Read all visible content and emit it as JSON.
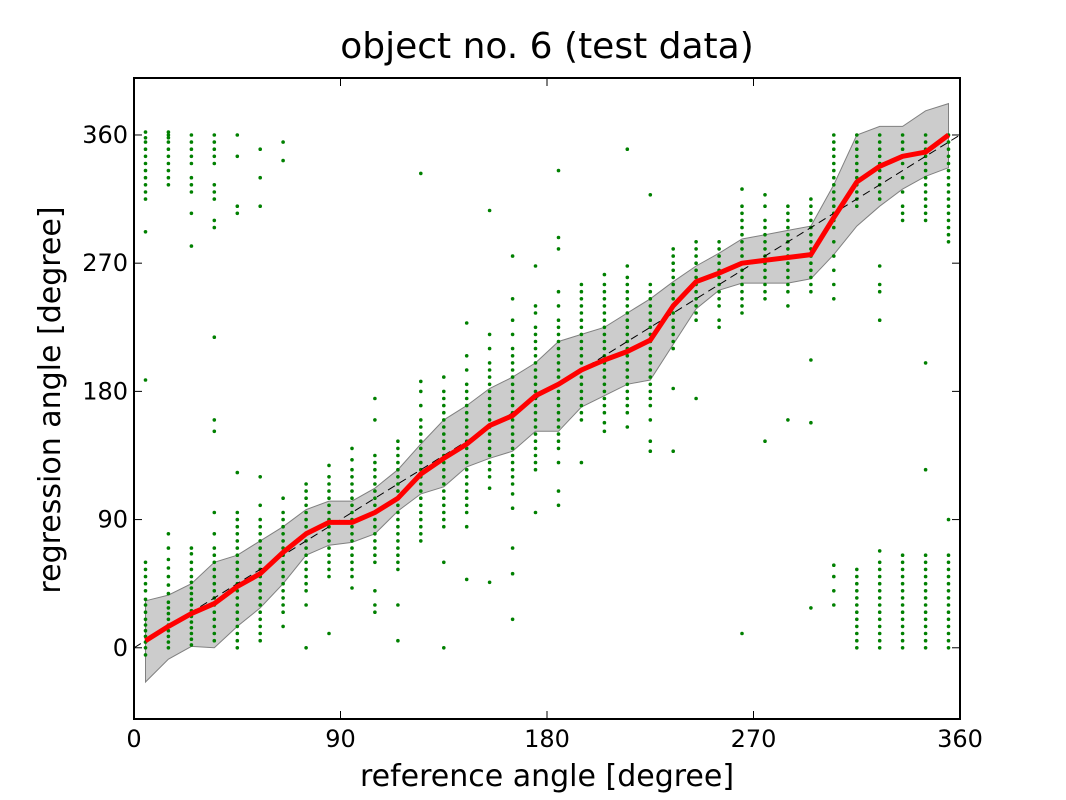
{
  "chart_data": {
    "type": "line",
    "title": "object no. 6 (test data)",
    "xlabel": "reference angle [degree]",
    "ylabel": "regression angle [degree]",
    "xlim": [
      0,
      360
    ],
    "ylim": [
      -50,
      400
    ],
    "xticks": [
      "0",
      "90",
      "180",
      "270",
      "360"
    ],
    "yticks": [
      "0",
      "90",
      "180",
      "270",
      "360"
    ],
    "grid": false,
    "colors": {
      "mean": "#ff0000",
      "band": "#cccccc",
      "points": "#008000",
      "reference": "#000000"
    },
    "reference_line": {
      "x": [
        0,
        360
      ],
      "y": [
        0,
        360
      ]
    },
    "mean_line": {
      "x": [
        5,
        15,
        25,
        35,
        45,
        55,
        65,
        75,
        85,
        90,
        95,
        105,
        115,
        125,
        135,
        145,
        155,
        165,
        175,
        185,
        195,
        205,
        215,
        225,
        235,
        245,
        255,
        265,
        275,
        285,
        295,
        305,
        315,
        325,
        335,
        345,
        355
      ],
      "y": [
        5,
        15,
        24,
        31,
        43,
        52,
        67,
        80,
        88,
        88,
        88,
        95,
        105,
        122,
        133,
        143,
        156,
        163,
        177,
        185,
        195,
        202,
        208,
        216,
        240,
        257,
        263,
        270,
        272,
        274,
        276,
        302,
        327,
        338,
        345,
        348,
        360
      ]
    },
    "std_band": {
      "x": [
        5,
        15,
        25,
        35,
        45,
        55,
        65,
        75,
        85,
        95,
        105,
        115,
        125,
        135,
        145,
        155,
        165,
        175,
        185,
        195,
        205,
        215,
        225,
        235,
        245,
        255,
        265,
        275,
        285,
        295,
        305,
        315,
        325,
        335,
        345,
        355
      ],
      "upper": [
        33,
        37,
        45,
        60,
        65,
        75,
        85,
        97,
        103,
        103,
        112,
        125,
        143,
        160,
        170,
        182,
        190,
        200,
        215,
        220,
        225,
        235,
        245,
        257,
        268,
        277,
        287,
        290,
        293,
        296,
        325,
        360,
        366,
        366,
        377,
        382
      ],
      "lower": [
        -24,
        -8,
        1,
        0,
        15,
        28,
        45,
        65,
        72,
        74,
        80,
        96,
        108,
        113,
        127,
        133,
        138,
        152,
        152,
        169,
        177,
        185,
        188,
        213,
        238,
        251,
        256,
        256,
        256,
        259,
        276,
        296,
        310,
        322,
        331,
        337
      ]
    },
    "scatter_columns": [
      {
        "x": 5,
        "y": [
          -5,
          0,
          4,
          8,
          12,
          16,
          20,
          25,
          30,
          34,
          40,
          45,
          50,
          55,
          60,
          188,
          292,
          315,
          320,
          325,
          330,
          335,
          340,
          345,
          350,
          355,
          358,
          362
        ]
      },
      {
        "x": 15,
        "y": [
          0,
          4,
          8,
          12,
          16,
          20,
          24,
          28,
          32,
          38,
          44,
          50,
          56,
          62,
          70,
          80,
          325,
          330,
          335,
          340,
          345,
          350,
          355,
          358,
          360,
          362
        ]
      },
      {
        "x": 25,
        "y": [
          2,
          6,
          10,
          14,
          18,
          22,
          26,
          30,
          34,
          38,
          42,
          46,
          50,
          55,
          60,
          66,
          70,
          282,
          305,
          320,
          325,
          330,
          340,
          345,
          350,
          355,
          360
        ]
      },
      {
        "x": 35,
        "y": [
          5,
          10,
          15,
          20,
          25,
          30,
          35,
          40,
          45,
          50,
          55,
          60,
          65,
          70,
          80,
          95,
          152,
          160,
          218,
          295,
          300,
          315,
          320,
          325,
          340,
          345,
          350,
          355,
          360
        ]
      },
      {
        "x": 45,
        "y": [
          0,
          5,
          10,
          15,
          20,
          25,
          30,
          35,
          40,
          45,
          50,
          55,
          60,
          65,
          70,
          75,
          80,
          85,
          90,
          95,
          123,
          305,
          310,
          345,
          360
        ]
      },
      {
        "x": 55,
        "y": [
          5,
          10,
          15,
          20,
          25,
          30,
          35,
          40,
          45,
          50,
          55,
          60,
          65,
          70,
          75,
          80,
          85,
          90,
          100,
          120,
          310,
          330,
          350
        ]
      },
      {
        "x": 65,
        "y": [
          15,
          25,
          30,
          35,
          40,
          45,
          50,
          55,
          60,
          65,
          70,
          75,
          80,
          85,
          90,
          95,
          105,
          342,
          355
        ]
      },
      {
        "x": 75,
        "y": [
          0,
          30,
          40,
          45,
          50,
          55,
          60,
          65,
          70,
          75,
          80,
          85,
          90,
          95,
          100,
          105,
          110,
          115
        ]
      },
      {
        "x": 85,
        "y": [
          10,
          50,
          55,
          60,
          65,
          70,
          75,
          80,
          85,
          90,
          95,
          100,
          105,
          110,
          115,
          120,
          128
        ]
      },
      {
        "x": 95,
        "y": [
          42,
          50,
          55,
          60,
          65,
          70,
          75,
          80,
          85,
          90,
          95,
          100,
          105,
          110,
          115,
          120,
          125,
          132,
          140
        ]
      },
      {
        "x": 105,
        "y": [
          25,
          30,
          40,
          60,
          65,
          70,
          75,
          80,
          85,
          90,
          95,
          100,
          105,
          110,
          115,
          120,
          125,
          130,
          135,
          160,
          175
        ]
      },
      {
        "x": 115,
        "y": [
          5,
          30,
          55,
          60,
          65,
          70,
          75,
          80,
          85,
          90,
          95,
          100,
          105,
          110,
          115,
          120,
          125,
          130,
          135,
          140,
          145
        ]
      },
      {
        "x": 125,
        "y": [
          75,
          80,
          85,
          90,
          95,
          100,
          105,
          110,
          115,
          120,
          125,
          130,
          135,
          140,
          145,
          150,
          155,
          160,
          170,
          180,
          187,
          333
        ]
      },
      {
        "x": 135,
        "y": [
          0,
          60,
          85,
          90,
          95,
          100,
          105,
          110,
          115,
          120,
          125,
          130,
          135,
          140,
          145,
          150,
          155,
          160,
          165,
          170,
          175,
          180,
          190
        ]
      },
      {
        "x": 145,
        "y": [
          48,
          85,
          95,
          100,
          105,
          110,
          115,
          120,
          125,
          130,
          135,
          140,
          145,
          150,
          155,
          160,
          165,
          170,
          175,
          180,
          185,
          195,
          205,
          228
        ]
      },
      {
        "x": 155,
        "y": [
          46,
          112,
          120,
          125,
          130,
          135,
          140,
          145,
          150,
          155,
          160,
          165,
          170,
          175,
          180,
          185,
          190,
          195,
          200,
          210,
          220,
          307
        ]
      },
      {
        "x": 165,
        "y": [
          20,
          52,
          70,
          98,
          108,
          115,
          120,
          125,
          130,
          135,
          140,
          145,
          150,
          155,
          160,
          165,
          170,
          175,
          180,
          185,
          190,
          195,
          200,
          205,
          210,
          220,
          230,
          245,
          275
        ]
      },
      {
        "x": 175,
        "y": [
          95,
          125,
          130,
          135,
          140,
          145,
          150,
          155,
          160,
          165,
          170,
          175,
          180,
          185,
          190,
          195,
          200,
          205,
          210,
          215,
          220,
          225,
          235,
          240,
          268
        ]
      },
      {
        "x": 185,
        "y": [
          100,
          110,
          130,
          140,
          145,
          150,
          155,
          160,
          165,
          170,
          175,
          180,
          185,
          190,
          195,
          200,
          205,
          210,
          215,
          220,
          225,
          230,
          240,
          250,
          280,
          288,
          335
        ]
      },
      {
        "x": 195,
        "y": [
          130,
          160,
          165,
          170,
          175,
          180,
          185,
          190,
          195,
          200,
          205,
          210,
          215,
          220,
          225,
          230,
          235,
          240,
          245,
          250,
          255
        ]
      },
      {
        "x": 205,
        "y": [
          152,
          158,
          165,
          170,
          175,
          180,
          185,
          190,
          195,
          200,
          205,
          210,
          215,
          220,
          225,
          230,
          235,
          240,
          245,
          250,
          255,
          262
        ]
      },
      {
        "x": 215,
        "y": [
          155,
          165,
          170,
          175,
          180,
          185,
          190,
          195,
          200,
          205,
          210,
          215,
          220,
          225,
          230,
          235,
          240,
          245,
          250,
          255,
          260,
          268,
          350
        ]
      },
      {
        "x": 225,
        "y": [
          138,
          145,
          160,
          170,
          175,
          180,
          185,
          190,
          195,
          200,
          205,
          210,
          215,
          220,
          225,
          230,
          235,
          240,
          245,
          250,
          255,
          318
        ]
      },
      {
        "x": 235,
        "y": [
          138,
          182,
          210,
          215,
          220,
          225,
          230,
          235,
          240,
          245,
          250,
          255,
          260,
          265,
          270,
          275,
          280
        ]
      },
      {
        "x": 245,
        "y": [
          175,
          230,
          235,
          240,
          245,
          250,
          255,
          260,
          265,
          270,
          275,
          280,
          285
        ]
      },
      {
        "x": 255,
        "y": [
          225,
          230,
          240,
          245,
          250,
          255,
          260,
          265,
          270,
          275,
          280,
          285
        ]
      },
      {
        "x": 265,
        "y": [
          10,
          235,
          240,
          245,
          250,
          255,
          260,
          265,
          270,
          275,
          280,
          285,
          290,
          295,
          300,
          305,
          310,
          322
        ]
      },
      {
        "x": 275,
        "y": [
          145,
          245,
          250,
          255,
          260,
          265,
          270,
          275,
          280,
          285,
          290,
          295,
          300,
          310,
          318
        ]
      },
      {
        "x": 285,
        "y": [
          160,
          240,
          250,
          255,
          260,
          265,
          270,
          275,
          280,
          285,
          290,
          295,
          300,
          305,
          310
        ]
      },
      {
        "x": 295,
        "y": [
          28,
          158,
          202,
          250,
          255,
          260,
          265,
          270,
          275,
          280,
          285,
          290,
          295,
          300,
          305,
          310,
          315
        ]
      },
      {
        "x": 305,
        "y": [
          30,
          40,
          50,
          58,
          245,
          255,
          265,
          275,
          285,
          295,
          300,
          305,
          310,
          315,
          320,
          325,
          330,
          335,
          340,
          345,
          350,
          355,
          360
        ]
      },
      {
        "x": 315,
        "y": [
          0,
          5,
          10,
          15,
          20,
          25,
          30,
          35,
          40,
          45,
          50,
          55,
          310,
          315,
          320,
          325,
          330,
          335,
          340,
          345,
          350,
          355,
          360
        ]
      },
      {
        "x": 325,
        "y": [
          0,
          5,
          10,
          15,
          20,
          25,
          30,
          35,
          40,
          45,
          50,
          55,
          60,
          68,
          230,
          250,
          255,
          268,
          315,
          320,
          325,
          330,
          335,
          340,
          345,
          350,
          355,
          360
        ]
      },
      {
        "x": 335,
        "y": [
          0,
          5,
          10,
          15,
          20,
          25,
          30,
          35,
          40,
          45,
          50,
          55,
          60,
          65,
          300,
          305,
          310,
          320,
          330,
          340,
          345,
          350,
          355,
          360
        ]
      },
      {
        "x": 345,
        "y": [
          0,
          5,
          10,
          15,
          20,
          25,
          30,
          35,
          40,
          45,
          50,
          55,
          60,
          65,
          125,
          200,
          300,
          305,
          310,
          315,
          320,
          325,
          330,
          335,
          340,
          345,
          350,
          355,
          360
        ]
      },
      {
        "x": 355,
        "y": [
          0,
          5,
          10,
          15,
          20,
          25,
          30,
          35,
          40,
          45,
          50,
          55,
          60,
          65,
          90,
          285,
          290,
          295,
          300,
          305,
          310,
          315,
          320,
          325,
          330,
          335,
          340,
          345,
          350,
          355,
          360
        ]
      }
    ]
  }
}
